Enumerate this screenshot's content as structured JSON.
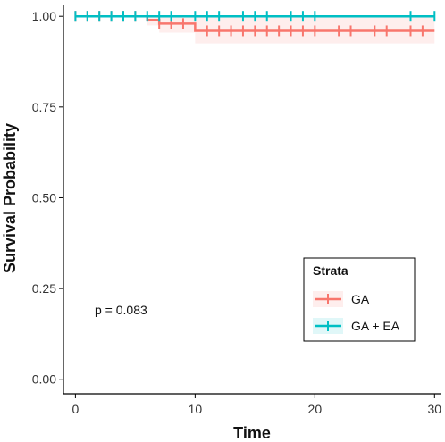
{
  "chart_data": {
    "type": "line",
    "title": "",
    "xlabel": "Time",
    "ylabel": "Survival Probability",
    "xlim": [
      -1,
      30.5
    ],
    "ylim": [
      -0.04,
      1.03
    ],
    "x_ticks": [
      0,
      10,
      20,
      30
    ],
    "y_ticks": [
      0.0,
      0.25,
      0.5,
      0.75,
      1.0
    ],
    "y_tick_labels": [
      "0.00",
      "0.25",
      "0.50",
      "0.75",
      "1.00"
    ],
    "grid": false,
    "legend": {
      "title": "Strata",
      "position": "bottom-right"
    },
    "annotation": "p = 0.083",
    "series": [
      {
        "name": "GA",
        "color": "#F8766D",
        "steps": [
          [
            0,
            1.0
          ],
          [
            6,
            1.0
          ],
          [
            6,
            0.99
          ],
          [
            7,
            0.99
          ],
          [
            7,
            0.98
          ],
          [
            10,
            0.98
          ],
          [
            10,
            0.96
          ],
          [
            30,
            0.96
          ]
        ],
        "ci_lower": [
          [
            0,
            1.0
          ],
          [
            6,
            0.975
          ],
          [
            7,
            0.955
          ],
          [
            10,
            0.925
          ],
          [
            30,
            0.925
          ]
        ],
        "censor_x": [
          0,
          1,
          2,
          3,
          4,
          5,
          7,
          8,
          9,
          11,
          12,
          13,
          14,
          15,
          16,
          17,
          18,
          19,
          20,
          22,
          23,
          25,
          26,
          28,
          29
        ],
        "censor_y": [
          1.0,
          1.0,
          1.0,
          1.0,
          1.0,
          1.0,
          0.98,
          0.98,
          0.98,
          0.96,
          0.96,
          0.96,
          0.96,
          0.96,
          0.96,
          0.96,
          0.96,
          0.96,
          0.96,
          0.96,
          0.96,
          0.96,
          0.96,
          0.96,
          0.96
        ]
      },
      {
        "name": "GA + EA",
        "color": "#00BFC4",
        "steps": [
          [
            0,
            1.0
          ],
          [
            30,
            1.0
          ]
        ],
        "censor_x": [
          0,
          1,
          2,
          3,
          4,
          5,
          6,
          7,
          8,
          10,
          11,
          12,
          14,
          15,
          16,
          18,
          19,
          20,
          28,
          30
        ]
      }
    ]
  }
}
